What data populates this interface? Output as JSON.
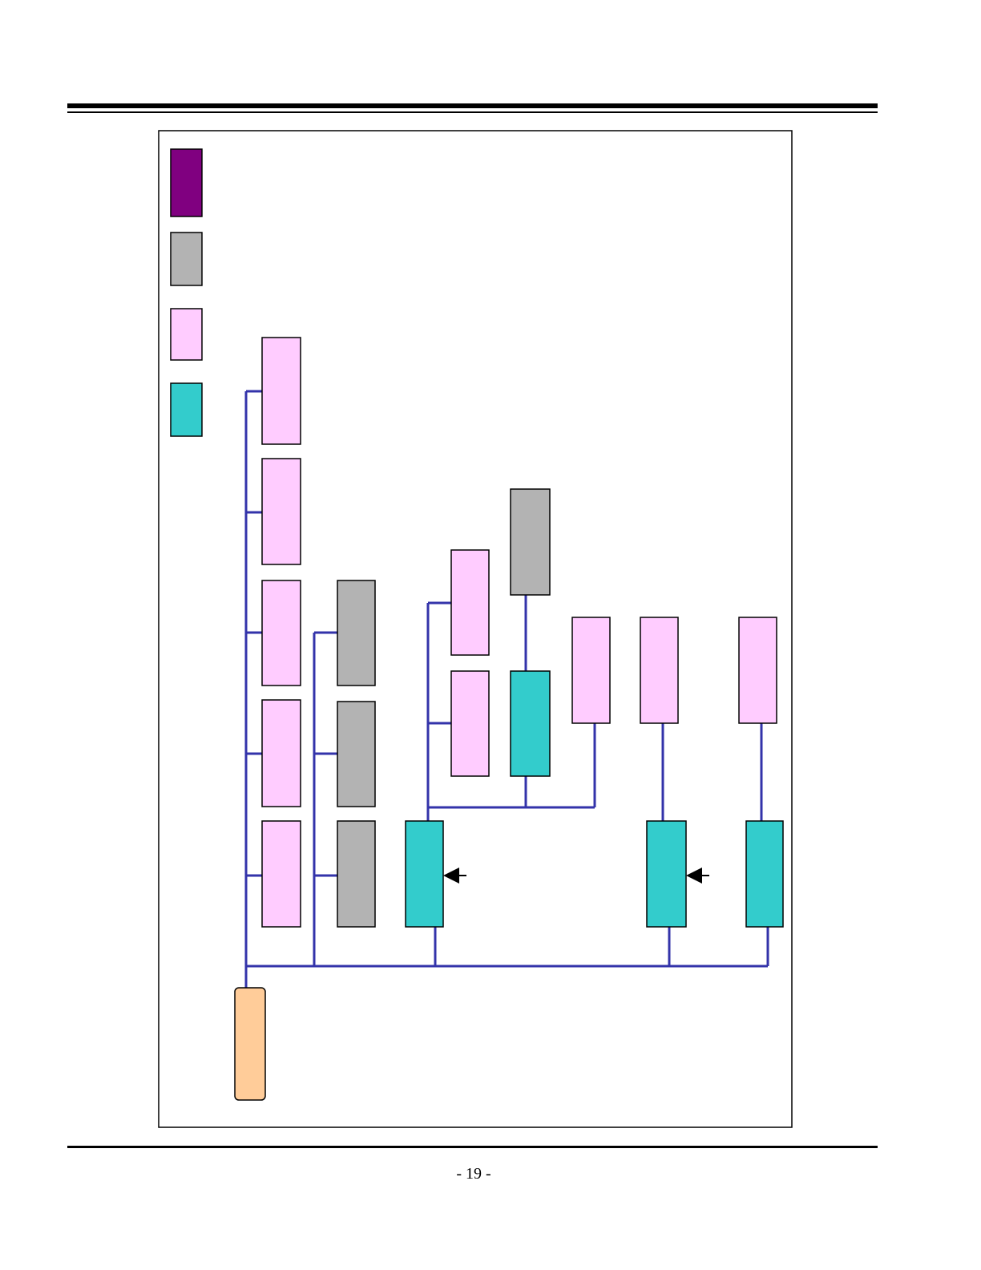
{
  "footer": {
    "page_number": "- 19 -"
  }
}
